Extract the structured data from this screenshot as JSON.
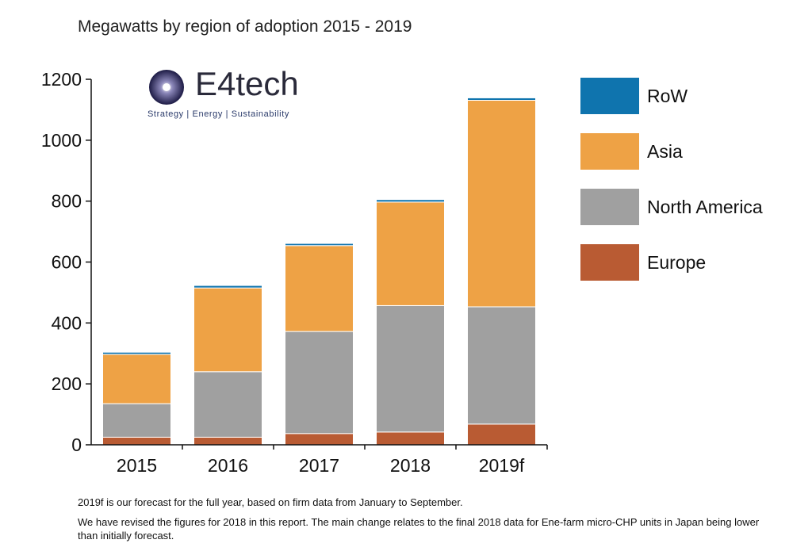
{
  "chart_data": {
    "type": "bar",
    "stacked": true,
    "title": "Megawatts by region of adoption 2015 - 2019",
    "categories": [
      "2015",
      "2016",
      "2017",
      "2018",
      "2019f"
    ],
    "series": [
      {
        "name": "Europe",
        "color": "#b95b33",
        "values": [
          25,
          25,
          37,
          42,
          68
        ]
      },
      {
        "name": "North America",
        "color": "#a0a0a0",
        "values": [
          110,
          215,
          335,
          415,
          385
        ]
      },
      {
        "name": "Asia",
        "color": "#eea245",
        "values": [
          162,
          275,
          282,
          340,
          678
        ]
      },
      {
        "name": "RoW",
        "color": "#0f74ae",
        "values": [
          7,
          8,
          7,
          8,
          8
        ]
      }
    ],
    "ylim": [
      0,
      1200
    ],
    "yticks": [
      0,
      200,
      400,
      600,
      800,
      1000,
      1200
    ],
    "legend_position": "right",
    "grid": false
  },
  "logo": {
    "word": "E4tech",
    "tagline": "Strategy | Energy | Sustainability"
  },
  "notes": [
    "2019f is our forecast for the full year, based on firm data from January to September.",
    "We have revised the figures for 2018 in this report. The main change relates to the final 2018 data for Ene-farm micro-CHP units in Japan being lower than initially forecast."
  ]
}
